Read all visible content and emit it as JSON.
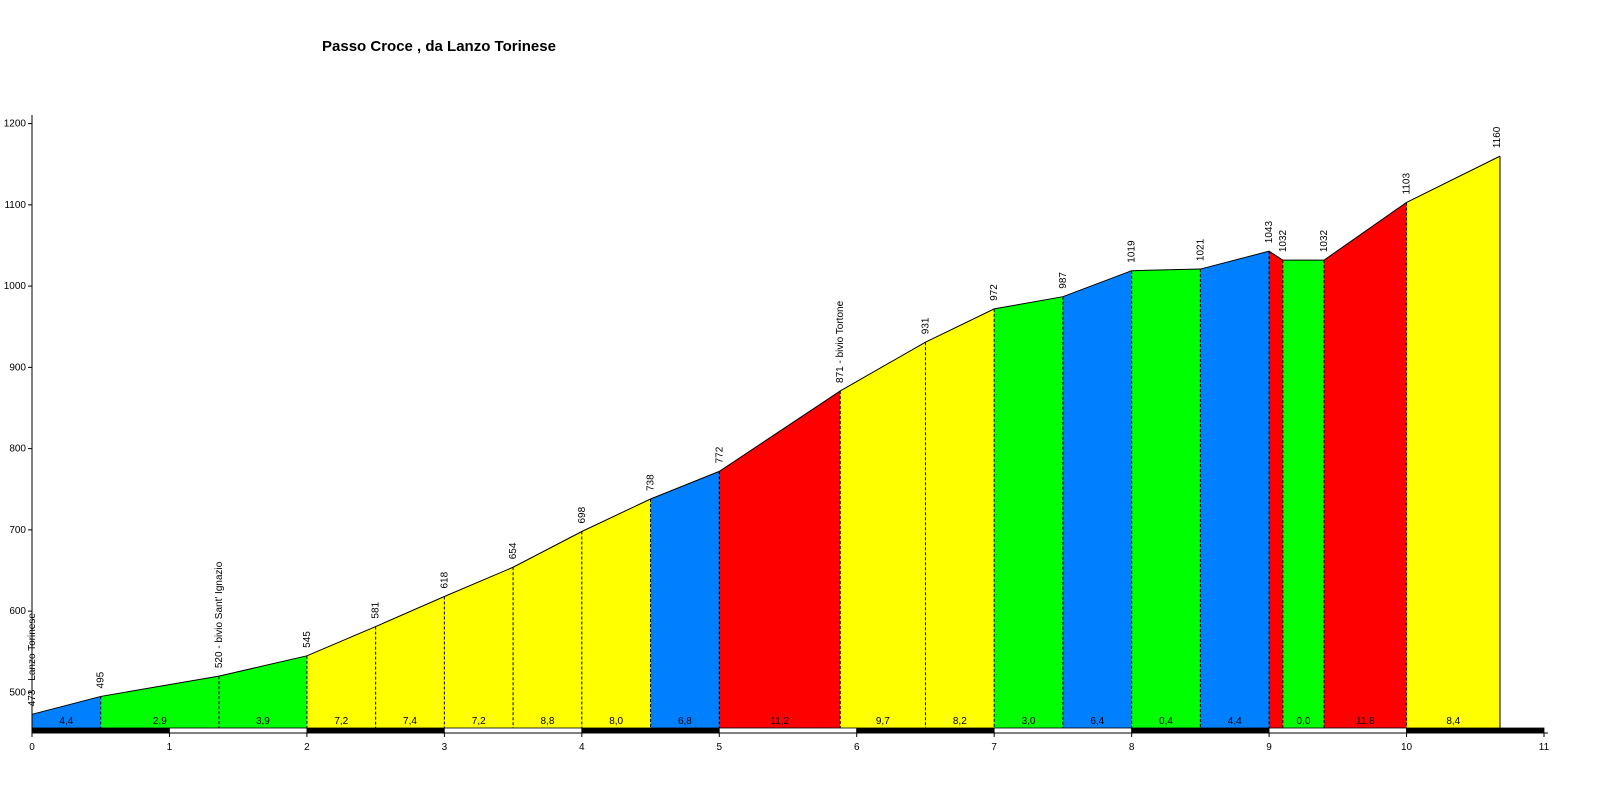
{
  "chart_data": {
    "type": "area",
    "title": "Passo Croce , da Lanzo Torinese",
    "xlabel": "",
    "ylabel": "",
    "xlim": [
      0,
      11
    ],
    "ylim": [
      450,
      1200
    ],
    "x_ticks": [
      0,
      1,
      2,
      3,
      4,
      5,
      6,
      7,
      8,
      9,
      10,
      11
    ],
    "y_ticks": [
      500,
      600,
      700,
      800,
      900,
      1000,
      1100,
      1200
    ],
    "grid": false,
    "points": [
      {
        "km": 0.0,
        "alt": 473,
        "label": "473 - Lanzo Torinese"
      },
      {
        "km": 0.5,
        "alt": 495,
        "label": "495"
      },
      {
        "km": 1.36,
        "alt": 520,
        "label": "520 - bivio Sant' Ignazio"
      },
      {
        "km": 2.0,
        "alt": 545,
        "label": "545"
      },
      {
        "km": 2.5,
        "alt": 581,
        "label": "581"
      },
      {
        "km": 3.0,
        "alt": 618,
        "label": "618"
      },
      {
        "km": 3.5,
        "alt": 654,
        "label": "654"
      },
      {
        "km": 4.0,
        "alt": 698,
        "label": "698"
      },
      {
        "km": 4.5,
        "alt": 738,
        "label": "738"
      },
      {
        "km": 5.0,
        "alt": 772,
        "label": "772"
      },
      {
        "km": 5.88,
        "alt": 871,
        "label": "871 - bivio Tortone"
      },
      {
        "km": 6.5,
        "alt": 931,
        "label": "931"
      },
      {
        "km": 7.0,
        "alt": 972,
        "label": "972"
      },
      {
        "km": 7.5,
        "alt": 987,
        "label": "987"
      },
      {
        "km": 8.0,
        "alt": 1019,
        "label": "1019"
      },
      {
        "km": 8.5,
        "alt": 1021,
        "label": "1021"
      },
      {
        "km": 9.0,
        "alt": 1043,
        "label": "1043"
      },
      {
        "km": 9.1,
        "alt": 1032,
        "label": "1032"
      },
      {
        "km": 9.4,
        "alt": 1032,
        "label": "1032"
      },
      {
        "km": 10.0,
        "alt": 1103,
        "label": "1103"
      },
      {
        "km": 10.68,
        "alt": 1160,
        "label": "1160"
      }
    ],
    "segments": [
      {
        "from": 0.0,
        "to": 0.5,
        "gradient": "4,4",
        "color": "#0080ff"
      },
      {
        "from": 0.5,
        "to": 1.36,
        "gradient": "2,9",
        "color": "#00ff00"
      },
      {
        "from": 1.36,
        "to": 2.0,
        "gradient": "3,9",
        "color": "#00ff00"
      },
      {
        "from": 2.0,
        "to": 2.5,
        "gradient": "7,2",
        "color": "#ffff00"
      },
      {
        "from": 2.5,
        "to": 3.0,
        "gradient": "7,4",
        "color": "#ffff00"
      },
      {
        "from": 3.0,
        "to": 3.5,
        "gradient": "7,2",
        "color": "#ffff00"
      },
      {
        "from": 3.5,
        "to": 4.0,
        "gradient": "8,8",
        "color": "#ffff00"
      },
      {
        "from": 4.0,
        "to": 4.5,
        "gradient": "8,0",
        "color": "#ffff00"
      },
      {
        "from": 4.5,
        "to": 5.0,
        "gradient": "6,8",
        "color": "#0080ff"
      },
      {
        "from": 5.0,
        "to": 5.88,
        "gradient": "11,2",
        "color": "#ff0000"
      },
      {
        "from": 5.88,
        "to": 6.5,
        "gradient": "9,7",
        "color": "#ffff00"
      },
      {
        "from": 6.5,
        "to": 7.0,
        "gradient": "8,2",
        "color": "#ffff00"
      },
      {
        "from": 7.0,
        "to": 7.5,
        "gradient": "3,0",
        "color": "#00ff00"
      },
      {
        "from": 7.5,
        "to": 8.0,
        "gradient": "6,4",
        "color": "#0080ff"
      },
      {
        "from": 8.0,
        "to": 8.5,
        "gradient": "0,4",
        "color": "#00ff00"
      },
      {
        "from": 8.5,
        "to": 9.0,
        "gradient": "4,4",
        "color": "#0080ff"
      },
      {
        "from": 9.0,
        "to": 9.1,
        "gradient": "",
        "color": "#ff0000"
      },
      {
        "from": 9.1,
        "to": 9.4,
        "gradient": "0,0",
        "color": "#00ff00"
      },
      {
        "from": 9.4,
        "to": 10.0,
        "gradient": "11,8",
        "color": "#ff0000"
      },
      {
        "from": 10.0,
        "to": 10.68,
        "gradient": "8,4",
        "color": "#ffff00"
      }
    ]
  }
}
